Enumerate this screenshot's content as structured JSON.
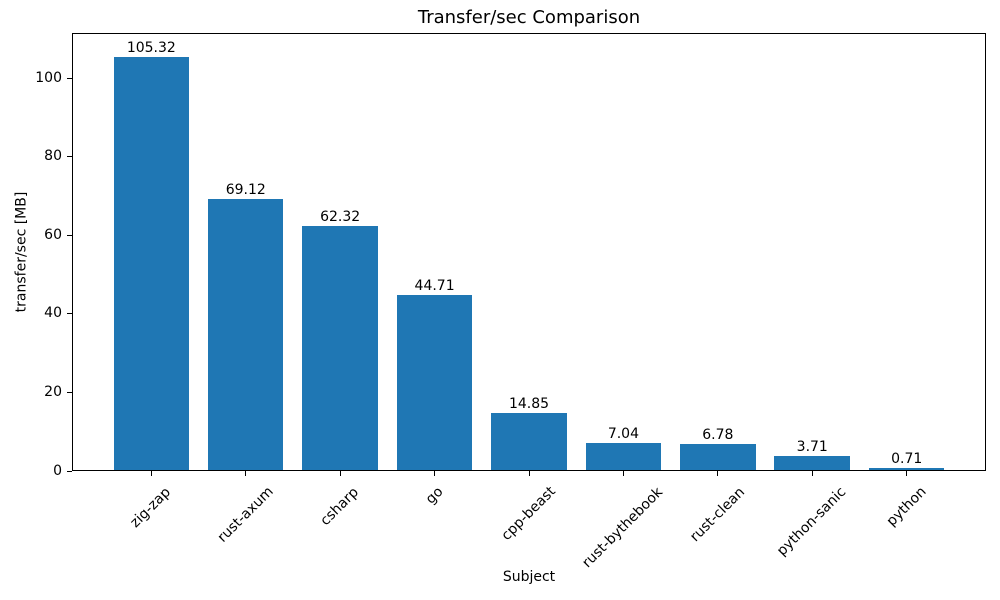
{
  "chart_data": {
    "type": "bar",
    "title": "Transfer/sec Comparison",
    "xlabel": "Subject",
    "ylabel": "transfer/sec [MB]",
    "categories": [
      "zig-zap",
      "rust-axum",
      "csharp",
      "go",
      "cpp-beast",
      "rust-bythebook",
      "rust-clean",
      "python-sanic",
      "python"
    ],
    "values": [
      105.32,
      69.12,
      62.32,
      44.71,
      14.85,
      7.04,
      6.78,
      3.71,
      0.71
    ],
    "value_labels": [
      "105.32",
      "69.12",
      "62.32",
      "44.71",
      "14.85",
      "7.04",
      "6.78",
      "3.71",
      "0.71"
    ],
    "yticks": [
      0,
      20,
      40,
      60,
      80,
      100
    ],
    "ylim": [
      0,
      111.5
    ],
    "bar_color": "#1f77b4",
    "text_color": "#000000",
    "grid": false,
    "legend": null,
    "x_tick_rotation_deg": 45
  }
}
